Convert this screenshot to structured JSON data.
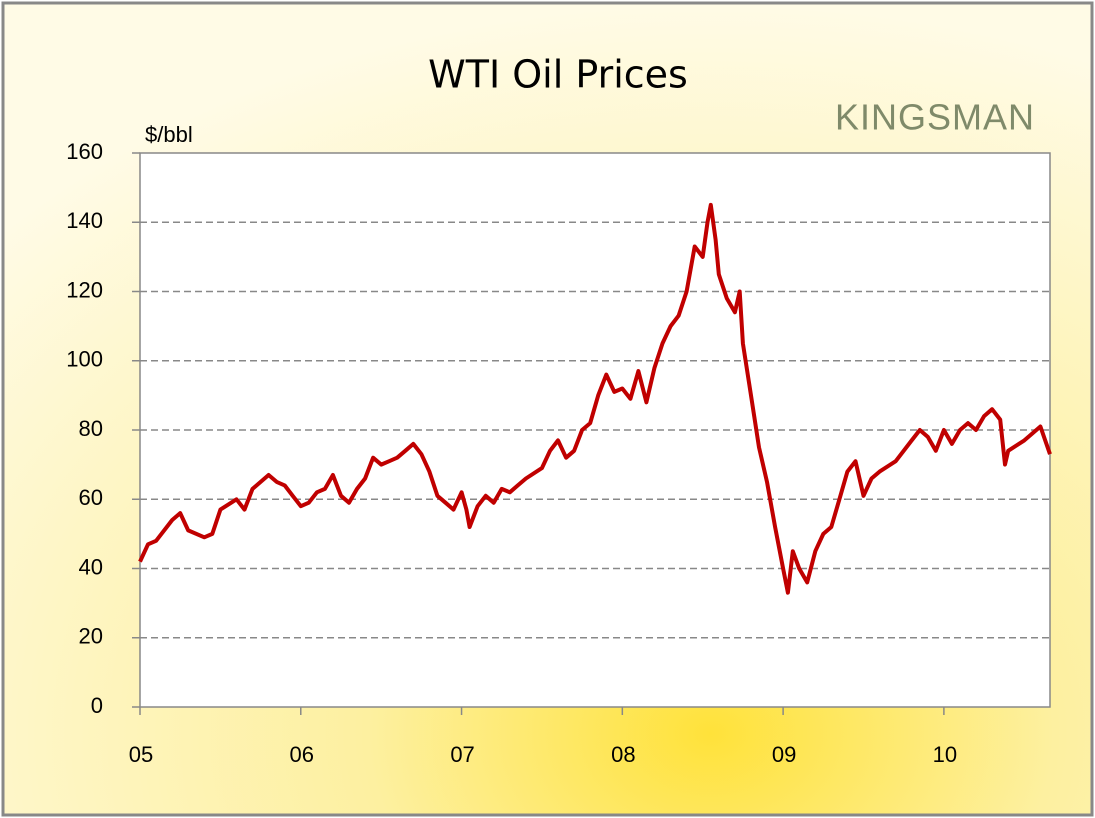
{
  "chart_data": {
    "type": "line",
    "title": "WTI Oil Prices",
    "logo": "KINGSMAN",
    "y_label": "$/bbl",
    "x": [
      5.0,
      5.05,
      5.1,
      5.2,
      5.25,
      5.3,
      5.4,
      5.45,
      5.5,
      5.6,
      5.65,
      5.7,
      5.8,
      5.85,
      5.9,
      5.95,
      6.0,
      6.05,
      6.1,
      6.15,
      6.2,
      6.25,
      6.3,
      6.35,
      6.4,
      6.45,
      6.5,
      6.55,
      6.6,
      6.65,
      6.7,
      6.75,
      6.8,
      6.85,
      6.9,
      6.95,
      7.0,
      7.03,
      7.05,
      7.1,
      7.15,
      7.2,
      7.25,
      7.3,
      7.35,
      7.4,
      7.5,
      7.55,
      7.6,
      7.65,
      7.7,
      7.75,
      7.8,
      7.85,
      7.9,
      7.95,
      8.0,
      8.05,
      8.1,
      8.15,
      8.2,
      8.25,
      8.3,
      8.35,
      8.4,
      8.45,
      8.5,
      8.53,
      8.55,
      8.58,
      8.6,
      8.65,
      8.7,
      8.73,
      8.75,
      8.8,
      8.85,
      8.9,
      8.95,
      9.0,
      9.03,
      9.06,
      9.1,
      9.15,
      9.2,
      9.25,
      9.3,
      9.35,
      9.4,
      9.45,
      9.5,
      9.55,
      9.6,
      9.7,
      9.8,
      9.85,
      9.9,
      9.95,
      10.0,
      10.05,
      10.1,
      10.15,
      10.2,
      10.25,
      10.3,
      10.35,
      10.38,
      10.4,
      10.5,
      10.55,
      10.6,
      10.63,
      10.66
    ],
    "values": [
      42,
      47,
      48,
      54,
      56,
      51,
      49,
      50,
      57,
      60,
      57,
      63,
      67,
      65,
      64,
      61,
      58,
      59,
      62,
      63,
      67,
      61,
      59,
      63,
      66,
      72,
      70,
      71,
      72,
      74,
      76,
      73,
      68,
      61,
      59,
      57,
      62,
      57,
      52,
      58,
      61,
      59,
      63,
      62,
      64,
      66,
      69,
      74,
      77,
      72,
      74,
      80,
      82,
      90,
      96,
      91,
      92,
      89,
      97,
      88,
      98,
      105,
      110,
      113,
      120,
      133,
      130,
      140,
      145,
      135,
      125,
      118,
      114,
      120,
      105,
      90,
      75,
      65,
      52,
      40,
      33,
      45,
      40,
      36,
      45,
      50,
      52,
      60,
      68,
      71,
      61,
      66,
      68,
      71,
      77,
      80,
      78,
      74,
      80,
      76,
      80,
      82,
      80,
      84,
      86,
      83,
      70,
      74,
      77,
      79,
      81,
      77,
      73
    ],
    "color": "#c00000",
    "xlim": [
      5,
      10.66
    ],
    "xticks": [
      {
        "value": 5,
        "label": "05"
      },
      {
        "value": 6,
        "label": "06"
      },
      {
        "value": 7,
        "label": "07"
      },
      {
        "value": 8,
        "label": "08"
      },
      {
        "value": 9,
        "label": "09"
      },
      {
        "value": 10,
        "label": "10"
      }
    ],
    "ylim": [
      0,
      160
    ],
    "yticks": [
      0,
      20,
      40,
      60,
      80,
      100,
      120,
      140,
      160
    ],
    "grid": true
  }
}
